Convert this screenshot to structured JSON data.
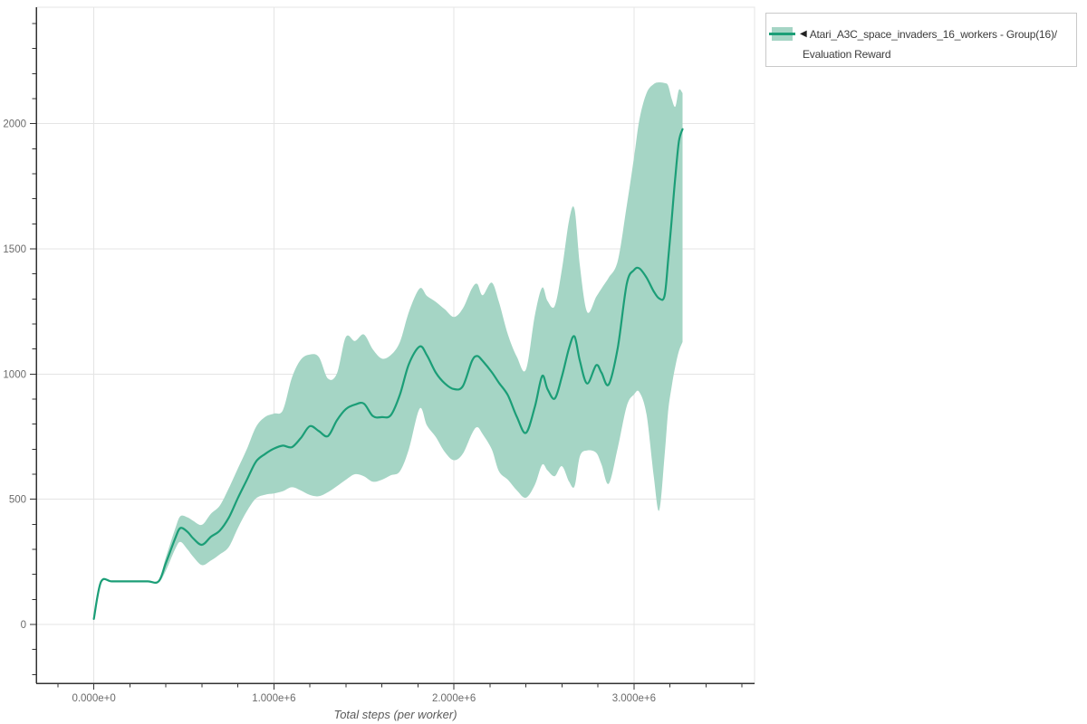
{
  "legend": {
    "marker": "◀",
    "line1": "Atari_A3C_space_invaders_16_workers - Group(16)/",
    "line2": "Evaluation Reward"
  },
  "chart_data": {
    "type": "line",
    "title": "",
    "xlabel": "Total steps (per worker)",
    "ylabel": "",
    "x_unit": "steps (x values below are millions of steps)",
    "xlim": [
      -320000,
      3670000
    ],
    "ylim": [
      -235,
      2465
    ],
    "grid": true,
    "legend_position": "top-right",
    "x_ticks": [
      {
        "value": 0,
        "label": "0.000e+0"
      },
      {
        "value": 1000000,
        "label": "1.000e+6"
      },
      {
        "value": 2000000,
        "label": "2.000e+6"
      },
      {
        "value": 3000000,
        "label": "3.000e+6"
      }
    ],
    "x_minor": {
      "from": -200000,
      "to": 3600000,
      "step": 200000
    },
    "y_ticks": [
      0,
      500,
      1000,
      1500,
      2000
    ],
    "y_minor": {
      "from": -200,
      "to": 2400,
      "step": 100
    },
    "colors": {
      "line": "#1b9e77",
      "band": "#a5d5c5",
      "grid": "#e4e4e4",
      "axis": "#333333",
      "tick_label": "#6b6b6b",
      "axis_title": "#5a5a5a",
      "legend_border": "#c9c9c9"
    },
    "series": [
      {
        "name": "Atari_A3C_space_invaders_16_workers - Group(16)/Evaluation Reward",
        "x_millions": [
          0,
          0.04,
          0.1,
          0.2,
          0.3,
          0.36,
          0.4,
          0.45,
          0.48,
          0.52,
          0.55,
          0.6,
          0.65,
          0.7,
          0.75,
          0.8,
          0.85,
          0.9,
          0.95,
          1.0,
          1.05,
          1.1,
          1.15,
          1.2,
          1.25,
          1.3,
          1.35,
          1.4,
          1.45,
          1.5,
          1.55,
          1.6,
          1.65,
          1.7,
          1.75,
          1.81,
          1.85,
          1.9,
          1.95,
          2.0,
          2.05,
          2.1,
          2.13,
          2.16,
          2.21,
          2.25,
          2.3,
          2.35,
          2.4,
          2.45,
          2.49,
          2.52,
          2.56,
          2.6,
          2.64,
          2.67,
          2.7,
          2.74,
          2.79,
          2.82,
          2.86,
          2.91,
          2.96,
          3.0,
          3.03,
          3.07,
          3.11,
          3.14,
          3.17,
          3.19,
          3.21,
          3.23,
          3.25,
          3.27
        ],
        "mean": [
          22,
          170,
          172,
          172,
          172,
          172,
          245,
          340,
          385,
          370,
          345,
          318,
          350,
          375,
          427,
          505,
          577,
          650,
          680,
          702,
          714,
          708,
          745,
          792,
          772,
          752,
          815,
          860,
          878,
          882,
          832,
          828,
          836,
          918,
          1040,
          1110,
          1075,
          1005,
          962,
          940,
          952,
          1052,
          1072,
          1052,
          1008,
          965,
          915,
          828,
          765,
          870,
          992,
          940,
          902,
          990,
          1105,
          1150,
          1052,
          962,
          1035,
          1005,
          958,
          1105,
          1360,
          1415,
          1422,
          1385,
          1330,
          1302,
          1312,
          1455,
          1620,
          1790,
          1930,
          1978
        ],
        "lower": [
          22,
          170,
          172,
          172,
          172,
          168,
          215,
          298,
          330,
          300,
          272,
          237,
          255,
          280,
          310,
          385,
          452,
          503,
          518,
          523,
          532,
          548,
          535,
          517,
          512,
          528,
          552,
          578,
          600,
          592,
          570,
          578,
          596,
          612,
          700,
          862,
          795,
          748,
          688,
          656,
          682,
          762,
          788,
          760,
          700,
          612,
          578,
          535,
          506,
          558,
          638,
          615,
          592,
          632,
          570,
          552,
          672,
          695,
          686,
          638,
          562,
          705,
          872,
          918,
          928,
          838,
          592,
          455,
          672,
          852,
          952,
          1032,
          1092,
          1128
        ],
        "upper": [
          22,
          170,
          172,
          172,
          172,
          178,
          268,
          378,
          432,
          428,
          415,
          398,
          442,
          475,
          545,
          623,
          700,
          788,
          828,
          842,
          856,
          985,
          1058,
          1078,
          1068,
          982,
          1002,
          1148,
          1132,
          1158,
          1098,
          1062,
          1076,
          1128,
          1248,
          1342,
          1312,
          1288,
          1258,
          1228,
          1262,
          1342,
          1360,
          1315,
          1365,
          1288,
          1158,
          1068,
          1018,
          1235,
          1345,
          1292,
          1272,
          1418,
          1615,
          1658,
          1432,
          1248,
          1308,
          1342,
          1385,
          1452,
          1672,
          1862,
          2015,
          2122,
          2158,
          2165,
          2162,
          2152,
          2098,
          2068,
          2135,
          2122
        ]
      }
    ]
  }
}
